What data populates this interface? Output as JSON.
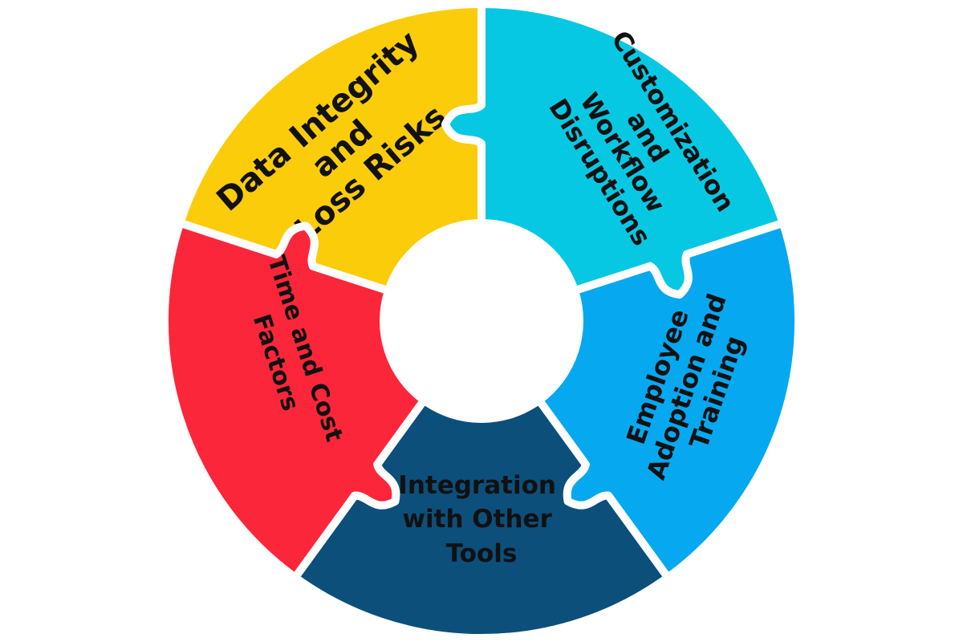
{
  "diagram": {
    "segments": [
      {
        "id": "data-integrity",
        "lines": [
          "Data Integrity",
          "and",
          "Loss Risks"
        ],
        "color": "#FBCC0A"
      },
      {
        "id": "customization",
        "lines": [
          "Customization",
          "and",
          "Workflow",
          "Disruptions"
        ],
        "color": "#07C8E3"
      },
      {
        "id": "employee-adoption",
        "lines": [
          "Employee",
          "Adoption and",
          "Training"
        ],
        "color": "#06A8F0"
      },
      {
        "id": "integration",
        "lines": [
          "Integration",
          "with Other",
          "Tools"
        ],
        "color": "#0C4F7B"
      },
      {
        "id": "time-cost",
        "lines": [
          "Time and Cost",
          "Factors"
        ],
        "color": "#FB2639"
      }
    ]
  }
}
